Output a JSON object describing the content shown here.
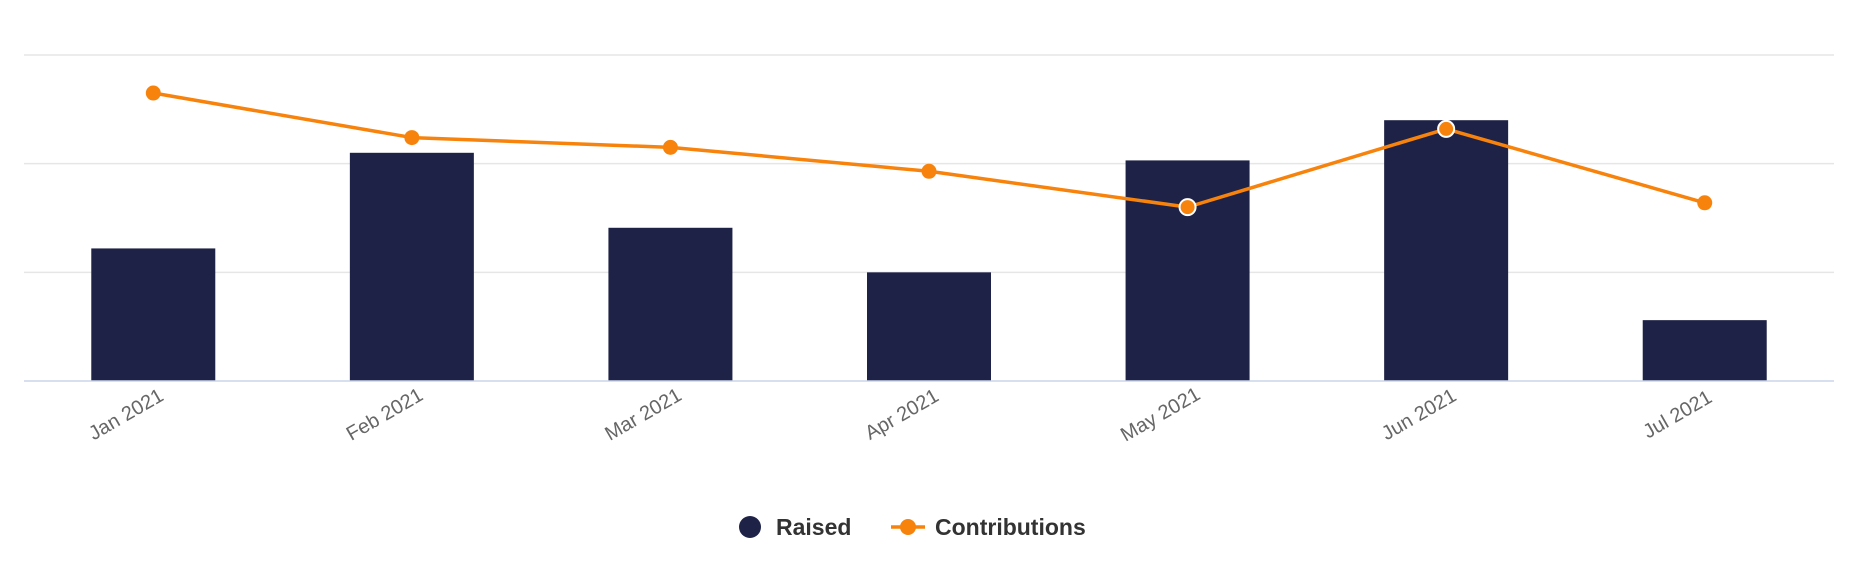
{
  "chart_data": {
    "type": "bar",
    "categories": [
      "Jan 2021",
      "Feb 2021",
      "Mar 2021",
      "Apr 2021",
      "May 2021",
      "Jun 2021",
      "Jul 2021"
    ],
    "ylim": [
      0,
      3
    ],
    "grid": true,
    "legend_position": "bottom-center",
    "series": [
      {
        "name": "Raised",
        "type": "bar",
        "color": "#1e2246",
        "values": [
          1.22,
          2.1,
          1.41,
          1.0,
          2.03,
          2.4,
          0.56
        ]
      },
      {
        "name": "Contributions",
        "type": "line",
        "color": "#f7830c",
        "values": [
          2.65,
          2.24,
          2.15,
          1.93,
          1.6,
          2.32,
          1.64
        ]
      }
    ]
  }
}
